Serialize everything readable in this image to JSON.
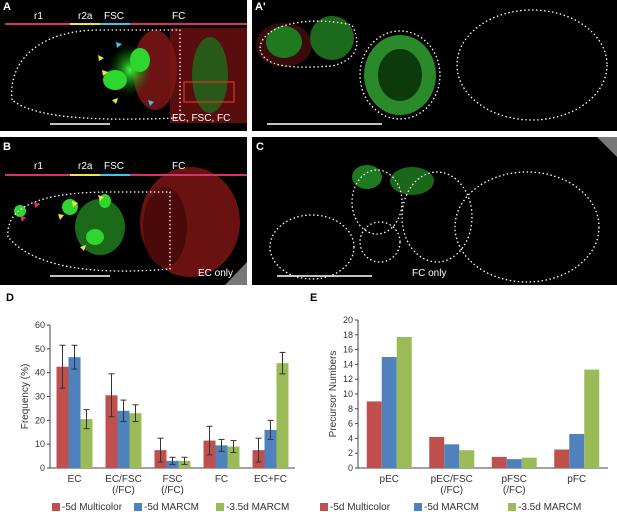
{
  "panels": {
    "A": {
      "label": "A",
      "segments": [
        "r1",
        "r2a",
        "FSC",
        "FC"
      ],
      "caption": "EC, FSC, FC"
    },
    "A2": {
      "label": "A'"
    },
    "B": {
      "label": "B",
      "segments": [
        "r1",
        "r2a",
        "FSC",
        "FC"
      ],
      "caption": "EC only"
    },
    "C": {
      "label": "C",
      "caption": "FC only"
    }
  },
  "colors": {
    "multicolor": "#c0504d",
    "marcm5": "#4f81bd",
    "marcm35": "#9bbb59",
    "r1_bar": "#d6336c",
    "r2a_bar": "#f1e34a",
    "fsc_bar": "#3cc6e8",
    "fc_bar": "#d6336c"
  },
  "legend": [
    "-5d Multicolor",
    "-5d MARCM",
    "-3.5d MARCM"
  ],
  "chart_data": [
    {
      "panel": "D",
      "type": "bar",
      "ylabel": "Frequency (%)",
      "ylim": [
        0,
        60
      ],
      "yticks": [
        0,
        10,
        20,
        30,
        40,
        50,
        60
      ],
      "categories": [
        [
          "EC"
        ],
        [
          "EC/FSC",
          "(/FC)"
        ],
        [
          "FSC",
          "(/FC)"
        ],
        [
          "FC"
        ],
        [
          "EC+FC"
        ]
      ],
      "series": [
        {
          "name": "-5d Multicolor",
          "values": [
            42.5,
            30.5,
            7.5,
            11.5,
            7.5
          ],
          "errors": [
            9,
            9,
            5,
            6,
            5
          ]
        },
        {
          "name": "-5d MARCM",
          "values": [
            46.5,
            24,
            3,
            9.5,
            16
          ],
          "errors": [
            5,
            4.5,
            1.5,
            2.5,
            4
          ]
        },
        {
          "name": "-3.5d MARCM",
          "values": [
            20.5,
            23,
            3,
            9,
            44
          ],
          "errors": [
            4,
            3.5,
            1.5,
            2.5,
            4.5
          ]
        }
      ]
    },
    {
      "panel": "E",
      "type": "bar",
      "ylabel": "Precursor Numbers",
      "ylim": [
        0,
        20
      ],
      "yticks": [
        0,
        2,
        4,
        6,
        8,
        10,
        12,
        14,
        16,
        18,
        20
      ],
      "categories": [
        [
          "pEC"
        ],
        [
          "pEC/FSC",
          "(/FC)"
        ],
        [
          "pFSC",
          "(/FC)"
        ],
        [
          "pFC"
        ]
      ],
      "series": [
        {
          "name": "-5d Multicolor",
          "values": [
            9,
            4.2,
            1.5,
            2.5
          ]
        },
        {
          "name": "-5d MARCM",
          "values": [
            15,
            3.2,
            1.2,
            4.6
          ]
        },
        {
          "name": "-3.5d MARCM",
          "values": [
            17.7,
            2.4,
            1.4,
            13.3
          ]
        }
      ]
    }
  ]
}
